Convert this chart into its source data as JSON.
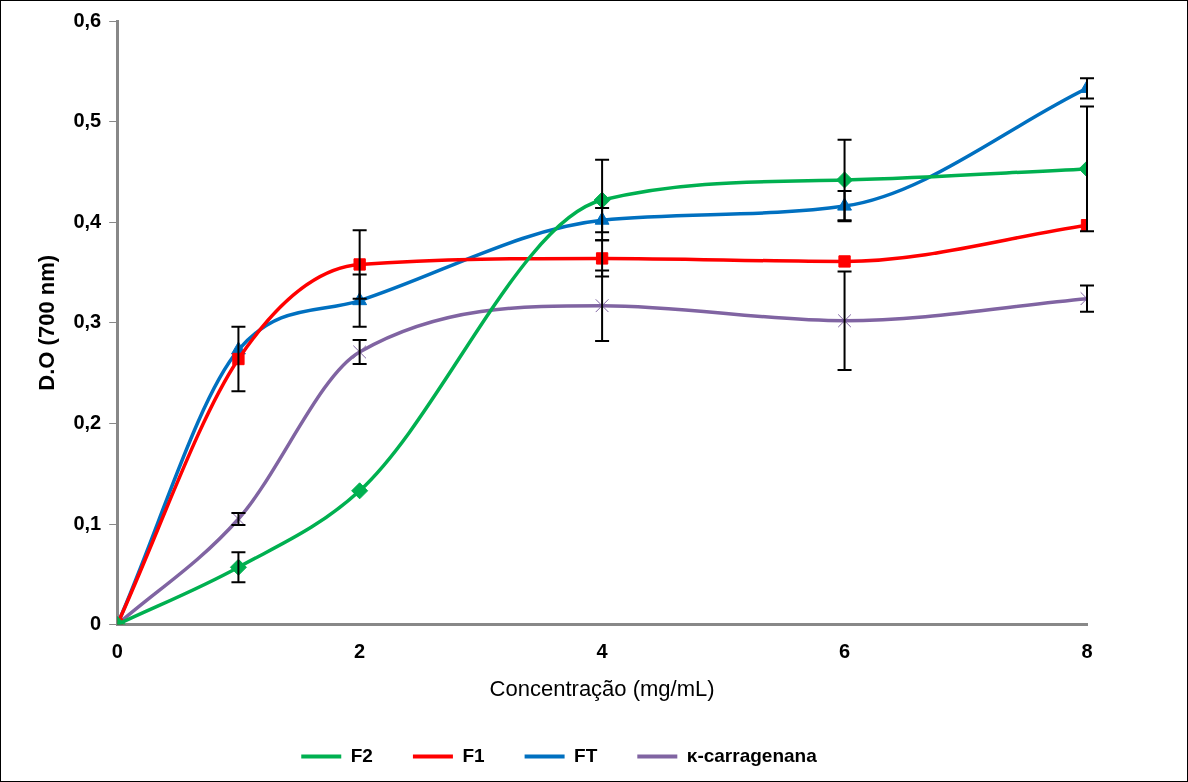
{
  "chart_data": {
    "type": "line",
    "xlabel": "Concentração (mg/mL)",
    "ylabel": "D.O (700 nm)",
    "x": [
      0,
      1,
      2,
      4,
      6,
      8
    ],
    "xlim": [
      0,
      8
    ],
    "xticks": [
      0,
      2,
      4,
      6,
      8
    ],
    "ylim": [
      0,
      0.6
    ],
    "yticks": [
      0,
      {
        "value": 0.1,
        "label": "0,1"
      },
      {
        "value": 0.2,
        "label": "0,2"
      },
      {
        "value": 0.3,
        "label": "0,3"
      },
      {
        "value": 0.4,
        "label": "0,4"
      },
      {
        "value": 0.5,
        "label": "0,5"
      },
      {
        "value": 0.6,
        "label": "0,6"
      }
    ],
    "grid": false,
    "legend": "bottom",
    "series": [
      {
        "name": "F2",
        "color": "#00b050",
        "marker": "diamond",
        "values": [
          0,
          0.057,
          0.133,
          0.422,
          0.442,
          0.453
        ],
        "errors": [
          null,
          0.015,
          null,
          0.04,
          0.04,
          0.062
        ]
      },
      {
        "name": "F1",
        "color": "#ff0000",
        "marker": "square",
        "values": [
          0,
          0.264,
          0.358,
          0.364,
          0.361,
          0.397
        ],
        "errors": [
          null,
          0.032,
          0.034,
          0.018,
          null,
          null
        ]
      },
      {
        "name": "FT",
        "color": "#0070c0",
        "marker": "triangle",
        "values": [
          0,
          0.273,
          0.322,
          0.402,
          0.416,
          0.533
        ],
        "errors": [
          null,
          null,
          0.026,
          0.012,
          0.015,
          0.01
        ]
      },
      {
        "name": "κ-carragenana",
        "color": "#8064a2",
        "marker": "cross",
        "values": [
          0,
          0.105,
          0.271,
          0.317,
          0.302,
          0.324
        ],
        "errors": [
          null,
          0.006,
          0.012,
          0.035,
          0.049,
          0.013
        ]
      }
    ]
  }
}
